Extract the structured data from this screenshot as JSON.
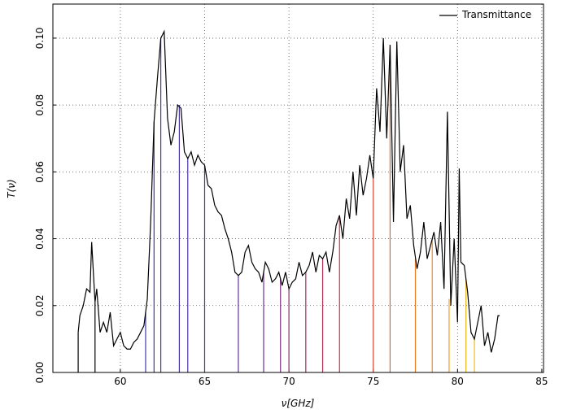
{
  "chart_data": {
    "type": "line",
    "xlabel": "ν[GHz]",
    "ylabel": "T(ν)",
    "xlim": [
      56,
      85.1
    ],
    "ylim": [
      0,
      0.1102
    ],
    "xticks": [
      60,
      65,
      70,
      75,
      80,
      85
    ],
    "yticks": [
      {
        "value": 0,
        "label": "0.00"
      },
      {
        "value": 0.02,
        "label": "0.02"
      },
      {
        "value": 0.04,
        "label": "0.04"
      },
      {
        "value": 0.06,
        "label": "0.06"
      },
      {
        "value": 0.08,
        "label": "0.08"
      },
      {
        "value": 0.1,
        "label": "0.10"
      }
    ],
    "grid": true,
    "legend": "upper right",
    "x": [
      57.5,
      57.6,
      57.8,
      58.0,
      58.2,
      58.3,
      58.5,
      58.6,
      58.8,
      59.0,
      59.2,
      59.4,
      59.6,
      59.8,
      60.0,
      60.2,
      60.4,
      60.6,
      60.8,
      61.0,
      61.2,
      61.4,
      61.6,
      61.8,
      62.0,
      62.2,
      62.4,
      62.6,
      62.8,
      63.0,
      63.2,
      63.4,
      63.6,
      63.8,
      64.0,
      64.2,
      64.4,
      64.6,
      64.8,
      65.0,
      65.2,
      65.4,
      65.6,
      65.8,
      66.0,
      66.2,
      66.4,
      66.6,
      66.8,
      67.0,
      67.2,
      67.4,
      67.6,
      67.8,
      68.0,
      68.2,
      68.4,
      68.6,
      68.8,
      69.0,
      69.2,
      69.4,
      69.6,
      69.8,
      70.0,
      70.2,
      70.4,
      70.6,
      70.8,
      71.0,
      71.2,
      71.4,
      71.6,
      71.8,
      72.0,
      72.2,
      72.4,
      72.6,
      72.8,
      73.0,
      73.2,
      73.4,
      73.6,
      73.8,
      74.0,
      74.2,
      74.4,
      74.6,
      74.8,
      75.0,
      75.2,
      75.4,
      75.6,
      75.8,
      76.0,
      76.2,
      76.4,
      76.6,
      76.8,
      77.0,
      77.2,
      77.4,
      77.6,
      77.8,
      78.0,
      78.2,
      78.4,
      78.6,
      78.8,
      79.0,
      79.2,
      79.4,
      79.6,
      79.8,
      80.0,
      80.1,
      80.2,
      80.4,
      80.6,
      80.8,
      81.0,
      81.2,
      81.4,
      81.6,
      81.8,
      82.0,
      82.2,
      82.4,
      82.5
    ],
    "series": [
      {
        "name": "Transmittance",
        "color": "#000000",
        "values": [
          0.012,
          0.017,
          0.02,
          0.025,
          0.024,
          0.039,
          0.021,
          0.025,
          0.012,
          0.015,
          0.012,
          0.018,
          0.008,
          0.01,
          0.012,
          0.008,
          0.007,
          0.007,
          0.009,
          0.01,
          0.012,
          0.014,
          0.022,
          0.045,
          0.075,
          0.088,
          0.1,
          0.102,
          0.076,
          0.068,
          0.072,
          0.08,
          0.079,
          0.066,
          0.064,
          0.066,
          0.062,
          0.065,
          0.063,
          0.062,
          0.056,
          0.055,
          0.05,
          0.048,
          0.047,
          0.043,
          0.04,
          0.036,
          0.03,
          0.029,
          0.03,
          0.036,
          0.038,
          0.033,
          0.031,
          0.03,
          0.027,
          0.033,
          0.031,
          0.027,
          0.028,
          0.03,
          0.026,
          0.03,
          0.025,
          0.027,
          0.028,
          0.033,
          0.029,
          0.03,
          0.032,
          0.036,
          0.03,
          0.035,
          0.034,
          0.036,
          0.03,
          0.036,
          0.044,
          0.047,
          0.04,
          0.052,
          0.046,
          0.06,
          0.047,
          0.062,
          0.053,
          0.058,
          0.065,
          0.058,
          0.085,
          0.072,
          0.1,
          0.07,
          0.098,
          0.045,
          0.099,
          0.06,
          0.068,
          0.046,
          0.05,
          0.038,
          0.031,
          0.036,
          0.045,
          0.034,
          0.038,
          0.042,
          0.035,
          0.045,
          0.025,
          0.078,
          0.02,
          0.04,
          0.015,
          0.061,
          0.033,
          0.032,
          0.024,
          0.012,
          0.01,
          0.015,
          0.02,
          0.008,
          0.012,
          0.006,
          0.01,
          0.017,
          0.017
        ]
      }
    ],
    "stems": {
      "x": [
        57.5,
        58.5,
        61.5,
        62.0,
        62.4,
        63.5,
        64.0,
        65.0,
        67.0,
        68.5,
        69.5,
        70.0,
        71.0,
        72.0,
        73.0,
        75.0,
        76.0,
        77.5,
        78.5,
        79.5,
        80.5,
        81.0
      ],
      "values": [
        0.012,
        0.021,
        0.018,
        0.075,
        0.1,
        0.08,
        0.064,
        0.062,
        0.029,
        0.03,
        0.028,
        0.025,
        0.03,
        0.034,
        0.047,
        0.058,
        0.098,
        0.034,
        0.04,
        0.022,
        0.028,
        0.01
      ],
      "colors": [
        "#000000",
        "#000000",
        "#3b3bb0",
        "#3f38ad",
        "#4336aa",
        "#4834a6",
        "#4d32a2",
        "#55309d",
        "#60308f",
        "#6e2f88",
        "#7c2e7e",
        "#8a2d74",
        "#a02e62",
        "#b32f54",
        "#c53446",
        "#db4a34",
        "#e66228",
        "#ec7a22",
        "#ee8c1e",
        "#eea01c",
        "#ecb21a",
        "#e8c018"
      ]
    }
  }
}
